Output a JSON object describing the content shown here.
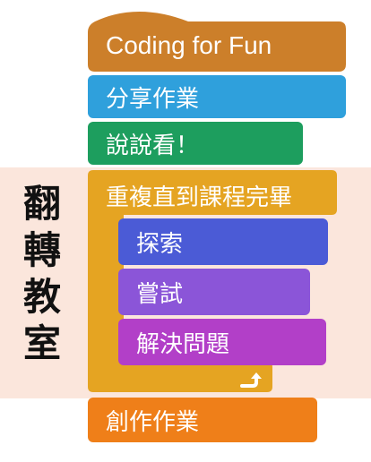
{
  "side_label": [
    "翻",
    "轉",
    "教",
    "室"
  ],
  "blocks": {
    "hat": "Coding for Fun",
    "share": "分享作業",
    "say": "說說看！",
    "repeat": "重複直到課程完畢",
    "explore": "探索",
    "try": "嘗試",
    "solve": "解決問題",
    "create": "創作作業"
  },
  "colors": {
    "hat": "#cc7f2a",
    "share": "#2fa0dc",
    "say": "#1d9e5e",
    "repeat": "#e5a422",
    "explore": "#4b5bd6",
    "try": "#8b55d8",
    "solve": "#b23fc8",
    "create": "#ef7f19",
    "band": "#fbe6dc"
  },
  "icons": {
    "loop_arrow": "loop-arrow-icon"
  }
}
